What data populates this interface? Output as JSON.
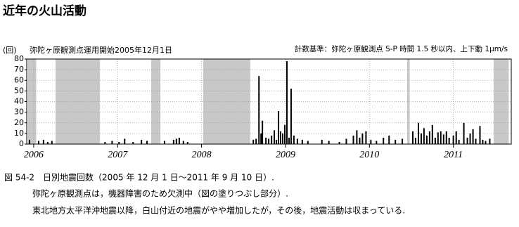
{
  "title": "近年の火山活動",
  "chart_data": {
    "type": "bar",
    "y_label": "(回)",
    "annotation": "弥陀ヶ原観測点運用開始2005年12月1日",
    "note": "計数基準：弥陀ヶ原観測点 S-P 時間 1.5 秒以内、上下動 1μm/s",
    "caption": [
      "図 54-2　日別地震回数（2005 年 12 月 1 日～2011 年 9 月 10 日）.",
      "弥陀ヶ原観測点は，機器障害のため欠測中（図の塗りつぶし部分）.",
      "東北地方太平洋沖地震以降，白山付近の地震がやや増加したが，その後，地震活動は収まっている."
    ],
    "color": "#000000",
    "shade_color": "#c8c8c8",
    "grid": true,
    "xlim": [
      2005.917,
      2011.69
    ],
    "xticks": [
      2006,
      2007,
      2008,
      2009,
      2010,
      2011
    ],
    "ylim": [
      0,
      80
    ],
    "yticks": [
      0,
      10,
      20,
      30,
      40,
      50,
      60,
      70,
      80
    ],
    "shaded_ranges": [
      [
        2005.93,
        2006.03
      ],
      [
        2006.26,
        2006.79
      ],
      [
        2007.4,
        2007.51
      ],
      [
        2008.02,
        2008.58
      ],
      [
        2010.45,
        2010.48
      ],
      [
        2011.48,
        2011.66
      ]
    ],
    "x": [
      2005.95,
      2006.059,
      2006.117,
      2006.167,
      2006.217,
      2006.85,
      2006.934,
      2007.017,
      2007.084,
      2007.184,
      2007.284,
      2007.35,
      2007.559,
      2007.667,
      2007.7,
      2007.734,
      2007.784,
      2007.834,
      2008.617,
      2008.65,
      2008.684,
      2008.709,
      2008.725,
      2008.767,
      2008.8,
      2008.834,
      2008.867,
      2008.892,
      2008.917,
      2008.942,
      2008.967,
      2008.992,
      2009.017,
      2009.042,
      2009.067,
      2009.1,
      2009.142,
      2009.2,
      2009.267,
      2009.434,
      2009.517,
      2009.642,
      2009.725,
      2009.809,
      2009.85,
      2009.884,
      2009.917,
      2009.959,
      2010.017,
      2010.084,
      2010.167,
      2010.234,
      2010.309,
      2010.392,
      2010.517,
      2010.55,
      2010.584,
      2010.617,
      2010.65,
      2010.684,
      2010.717,
      2010.75,
      2010.784,
      2010.817,
      2010.85,
      2010.884,
      2010.917,
      2010.95,
      2011.0,
      2011.034,
      2011.067,
      2011.125,
      2011.167,
      2011.2,
      2011.234,
      2011.267,
      2011.317,
      2011.35,
      2011.384,
      2011.434
    ],
    "values": [
      4,
      3,
      4,
      2,
      3,
      2,
      3,
      2,
      5,
      2,
      4,
      3,
      3,
      4,
      5,
      6,
      3,
      2,
      4,
      5,
      64,
      10,
      22,
      6,
      5,
      8,
      13,
      4,
      31,
      12,
      10,
      18,
      78,
      6,
      52,
      8,
      5,
      4,
      3,
      4,
      3,
      2,
      5,
      8,
      13,
      6,
      10,
      12,
      4,
      3,
      6,
      8,
      4,
      5,
      12,
      6,
      20,
      10,
      15,
      8,
      12,
      18,
      6,
      11,
      12,
      9,
      12,
      6,
      8,
      12,
      4,
      20,
      6,
      10,
      14,
      5,
      17,
      4,
      3,
      5
    ]
  }
}
